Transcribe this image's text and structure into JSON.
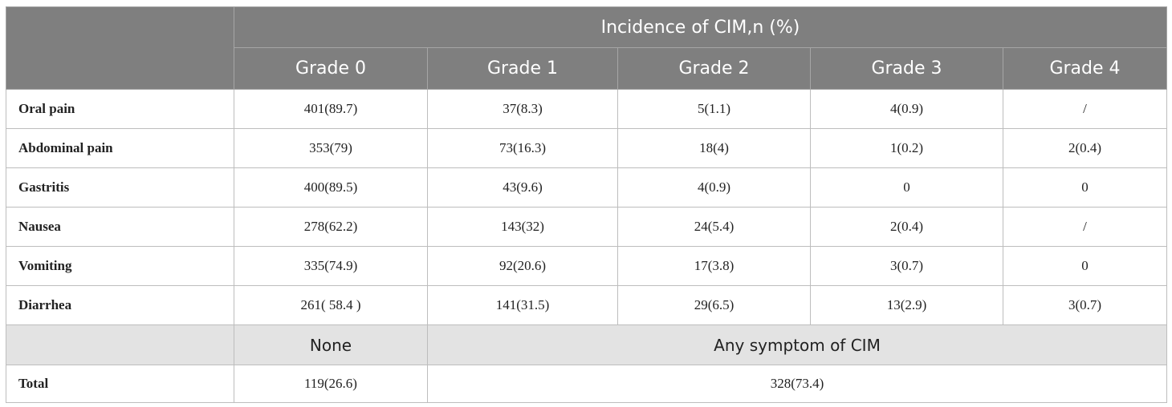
{
  "table": {
    "group_header": "Incidence of CIM,n (%)",
    "grade_headers": [
      "Grade 0",
      "Grade 1",
      "Grade 2",
      "Grade 3",
      "Grade 4"
    ],
    "rows": [
      {
        "label": "Oral pain",
        "cells": [
          "401(89.7)",
          "37(8.3)",
          "5(1.1)",
          "4(0.9)",
          "/"
        ]
      },
      {
        "label": "Abdominal pain",
        "cells": [
          "353(79)",
          "73(16.3)",
          "18(4)",
          "1(0.2)",
          "2(0.4)"
        ]
      },
      {
        "label": "Gastritis",
        "cells": [
          "400(89.5)",
          "43(9.6)",
          "4(0.9)",
          "0",
          "0"
        ]
      },
      {
        "label": "Nausea",
        "cells": [
          "278(62.2)",
          "143(32)",
          "24(5.4)",
          "2(0.4)",
          "/"
        ]
      },
      {
        "label": "Vomiting",
        "cells": [
          "335(74.9)",
          "92(20.6)",
          "17(3.8)",
          "3(0.7)",
          "0"
        ]
      },
      {
        "label": "Diarrhea",
        "cells": [
          "261( 58.4 )",
          "141(31.5)",
          "29(6.5)",
          "13(2.9)",
          "3(0.7)"
        ]
      }
    ],
    "summary_headers": {
      "none": "None",
      "any": "Any symptom of CIM"
    },
    "total": {
      "label": "Total",
      "none": "119(26.6)",
      "any": "328(73.4)"
    }
  }
}
